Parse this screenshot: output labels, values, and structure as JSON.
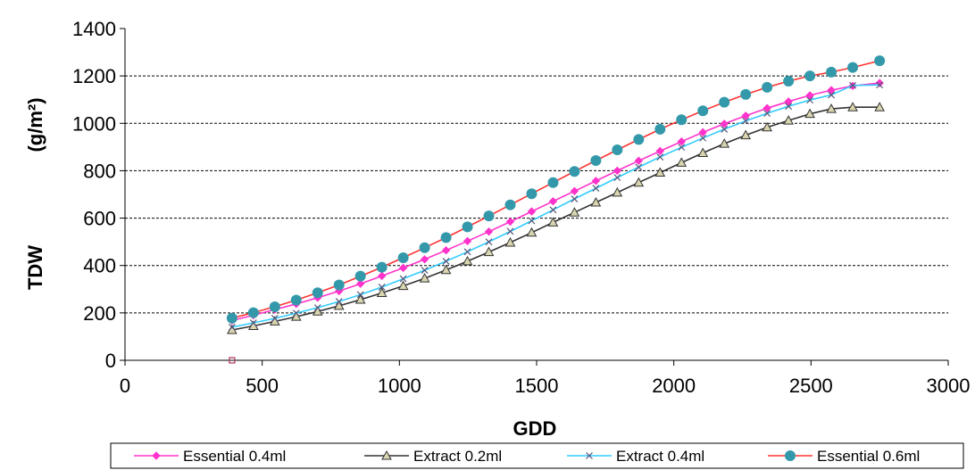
{
  "chart_data": {
    "type": "line",
    "title": "",
    "xlabel": "GDD",
    "ylabel": "TDW",
    "ylabel_unit": "(g/m²)",
    "xlim": [
      0,
      3000
    ],
    "ylim": [
      0,
      1400
    ],
    "xticks": [
      0,
      500,
      1000,
      1500,
      2000,
      2500,
      3000
    ],
    "yticks": [
      0,
      200,
      400,
      600,
      800,
      1000,
      1200,
      1400
    ],
    "grid": "horizontal dashed",
    "legend_position": "bottom",
    "series": [
      {
        "name": "Essential 0.4ml",
        "color": "#ff33cc",
        "marker": "diamond",
        "x": [
          390,
          468,
          546,
          624,
          702,
          780,
          858,
          936,
          1014,
          1092,
          1170,
          1248,
          1326,
          1404,
          1482,
          1560,
          1638,
          1716,
          1794,
          1872,
          1950,
          2028,
          2106,
          2184,
          2262,
          2340,
          2418,
          2496,
          2574,
          2652,
          2750
        ],
        "y": [
          168,
          190,
          214,
          238,
          264,
          292,
          323,
          356,
          390,
          426,
          464,
          503,
          543,
          585,
          628,
          671,
          714,
          757,
          800,
          842,
          883,
          923,
          962,
          998,
          1032,
          1064,
          1092,
          1118,
          1140,
          1158,
          1170
        ]
      },
      {
        "name": "Extract 0.2ml",
        "color": "#333333",
        "marker": "triangle",
        "x": [
          390,
          468,
          546,
          624,
          702,
          780,
          858,
          936,
          1014,
          1092,
          1170,
          1248,
          1326,
          1404,
          1482,
          1560,
          1638,
          1716,
          1794,
          1872,
          1950,
          2028,
          2106,
          2184,
          2262,
          2340,
          2418,
          2496,
          2574,
          2652,
          2750
        ],
        "y": [
          128,
          145,
          164,
          184,
          206,
          230,
          256,
          284,
          314,
          346,
          381,
          418,
          457,
          497,
          539,
          582,
          624,
          666,
          708,
          750,
          792,
          834,
          875,
          914,
          950,
          983,
          1012,
          1040,
          1061,
          1068,
          1068
        ]
      },
      {
        "name": "Extract 0.4ml",
        "color": "#33ccff",
        "marker": "x",
        "x": [
          390,
          468,
          546,
          624,
          702,
          780,
          858,
          936,
          1014,
          1092,
          1170,
          1248,
          1326,
          1404,
          1482,
          1560,
          1638,
          1716,
          1794,
          1872,
          1950,
          2028,
          2106,
          2184,
          2262,
          2340,
          2418,
          2496,
          2574,
          2652,
          2750
        ],
        "y": [
          140,
          158,
          177,
          199,
          222,
          248,
          277,
          309,
          344,
          380,
          418,
          458,
          500,
          544,
          589,
          635,
          681,
          726,
          771,
          815,
          858,
          899,
          938,
          975,
          1010,
          1042,
          1072,
          1098,
          1120,
          1160,
          1162
        ]
      },
      {
        "name": "Essential 0.6ml",
        "color": "#3399aa",
        "line_color": "#ff3333",
        "marker": "circle",
        "x": [
          390,
          468,
          546,
          624,
          702,
          780,
          858,
          936,
          1014,
          1092,
          1170,
          1248,
          1326,
          1404,
          1482,
          1560,
          1638,
          1716,
          1794,
          1872,
          1950,
          2028,
          2106,
          2184,
          2262,
          2340,
          2418,
          2496,
          2574,
          2652,
          2750
        ],
        "y": [
          178,
          201,
          226,
          254,
          285,
          318,
          355,
          393,
          433,
          475,
          518,
          563,
          609,
          656,
          703,
          750,
          797,
          843,
          888,
          932,
          975,
          1015,
          1053,
          1089,
          1122,
          1152,
          1178,
          1200,
          1216,
          1236,
          1264
        ]
      }
    ]
  }
}
